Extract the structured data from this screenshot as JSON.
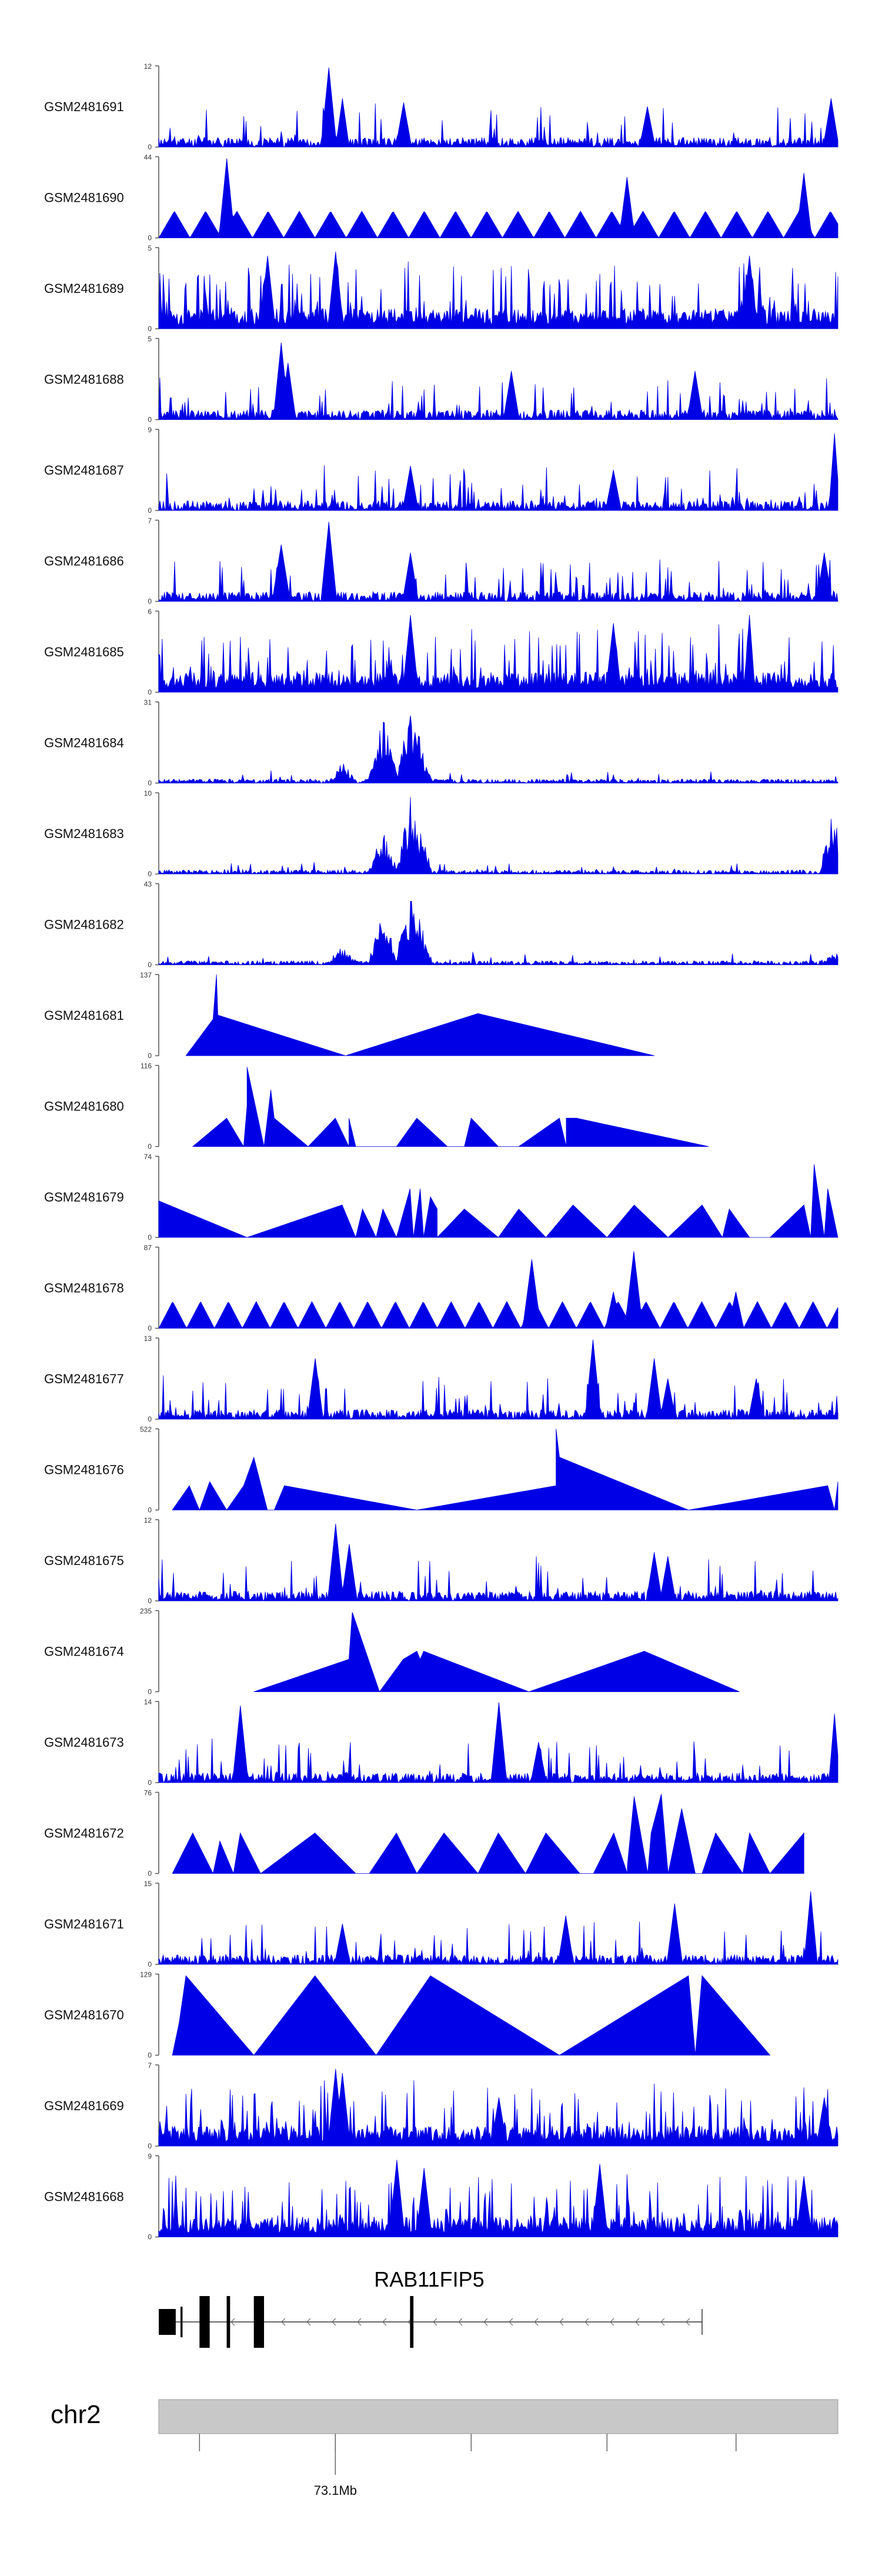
{
  "chart_data": {
    "type": "area",
    "title": "",
    "x_axis": {
      "tick_labels": [
        {
          "position_mb": 73.1,
          "label": "73.1Mb"
        }
      ]
    },
    "series": [
      {
        "name": "GSM2481691",
        "ymin": 0,
        "ymax": 12,
        "style": "spiky",
        "seed": 11,
        "peaks": [
          [
            0.25,
            0.98,
            0.01
          ],
          [
            0.27,
            0.6,
            0.008
          ],
          [
            0.36,
            0.55,
            0.01
          ],
          [
            0.72,
            0.5,
            0.01
          ],
          [
            0.99,
            0.6,
            0.01
          ]
        ]
      },
      {
        "name": "GSM2481690",
        "ymin": 0,
        "ymax": 44,
        "style": "triangles",
        "seed": 12,
        "peaks": [
          [
            0.1,
            0.98,
            0.01
          ],
          [
            0.69,
            0.75,
            0.01
          ],
          [
            0.95,
            0.8,
            0.01
          ]
        ]
      },
      {
        "name": "GSM2481689",
        "ymin": 0,
        "ymax": 5,
        "style": "dense",
        "seed": 13,
        "peaks": [
          [
            0.16,
            0.9,
            0.01
          ],
          [
            0.26,
            0.95,
            0.01
          ],
          [
            0.87,
            0.9,
            0.01
          ]
        ]
      },
      {
        "name": "GSM2481688",
        "ymin": 0,
        "ymax": 5,
        "style": "spiky",
        "seed": 14,
        "peaks": [
          [
            0.18,
            0.95,
            0.01
          ],
          [
            0.19,
            0.7,
            0.01
          ],
          [
            0.52,
            0.6,
            0.01
          ],
          [
            0.79,
            0.6,
            0.01
          ]
        ]
      },
      {
        "name": "GSM2481687",
        "ymin": 0,
        "ymax": 9,
        "style": "spiky",
        "seed": 15,
        "peaks": [
          [
            0.37,
            0.55,
            0.01
          ],
          [
            0.67,
            0.5,
            0.01
          ],
          [
            0.995,
            0.95,
            0.006
          ]
        ]
      },
      {
        "name": "GSM2481686",
        "ymin": 0,
        "ymax": 7,
        "style": "spiky",
        "seed": 16,
        "peaks": [
          [
            0.18,
            0.7,
            0.012
          ],
          [
            0.25,
            0.98,
            0.01
          ],
          [
            0.37,
            0.6,
            0.01
          ],
          [
            0.98,
            0.6,
            0.01
          ]
        ]
      },
      {
        "name": "GSM2481685",
        "ymin": 0,
        "ymax": 6,
        "style": "dense",
        "seed": 17,
        "peaks": [
          [
            0.37,
            0.95,
            0.01
          ],
          [
            0.67,
            0.85,
            0.01
          ],
          [
            0.87,
            0.95,
            0.006
          ]
        ]
      },
      {
        "name": "GSM2481684",
        "ymin": 0,
        "ymax": 31,
        "style": "cluster",
        "seed": 18,
        "peaks": [
          [
            0.27,
            0.28,
            0.02
          ],
          [
            0.33,
            0.85,
            0.012
          ],
          [
            0.37,
            0.95,
            0.012
          ],
          [
            0.38,
            0.7,
            0.01
          ]
        ]
      },
      {
        "name": "GSM2481683",
        "ymin": 0,
        "ymax": 10,
        "style": "cluster",
        "seed": 19,
        "peaks": [
          [
            0.33,
            0.55,
            0.01
          ],
          [
            0.37,
            0.95,
            0.01
          ],
          [
            0.38,
            0.7,
            0.01
          ],
          [
            0.995,
            0.9,
            0.006
          ]
        ]
      },
      {
        "name": "GSM2481682",
        "ymin": 0,
        "ymax": 43,
        "style": "cluster",
        "seed": 20,
        "peaks": [
          [
            0.27,
            0.25,
            0.02
          ],
          [
            0.33,
            0.75,
            0.012
          ],
          [
            0.37,
            0.98,
            0.012
          ],
          [
            0.38,
            0.7,
            0.01
          ],
          [
            0.995,
            0.15,
            0.005
          ]
        ]
      },
      {
        "name": "GSM2481681",
        "ymin": 0,
        "ymax": 137,
        "style": "triangles_explicit",
        "seed": 21,
        "points": [
          [
            0.04,
            0
          ],
          [
            0.08,
            0.45
          ],
          [
            0.085,
            1.0
          ],
          [
            0.087,
            0.5
          ],
          [
            0.275,
            0
          ],
          [
            0.47,
            0.52
          ],
          [
            0.73,
            0
          ]
        ]
      },
      {
        "name": "GSM2481680",
        "ymin": 0,
        "ymax": 116,
        "style": "triangles_explicit",
        "seed": 22,
        "points": [
          [
            0.05,
            0
          ],
          [
            0.1,
            0.35
          ],
          [
            0.125,
            0
          ],
          [
            0.13,
            0.4
          ],
          [
            0.14,
            0.45
          ],
          [
            0.125,
            0
          ],
          [
            0.125,
            0
          ],
          [
            0.13,
            0.5
          ],
          [
            0.13,
            0.98
          ],
          [
            0.155,
            0
          ],
          [
            0.165,
            0.7
          ],
          [
            0.17,
            0.35
          ],
          [
            0.22,
            0
          ],
          [
            0.26,
            0.35
          ],
          [
            0.28,
            0
          ],
          [
            0.28,
            0.35
          ],
          [
            0.29,
            0
          ],
          [
            0.35,
            0
          ],
          [
            0.38,
            0.35
          ],
          [
            0.425,
            0
          ],
          [
            0.45,
            0
          ],
          [
            0.46,
            0.35
          ],
          [
            0.5,
            0
          ],
          [
            0.53,
            0
          ],
          [
            0.59,
            0.35
          ],
          [
            0.6,
            0
          ],
          [
            0.6,
            0.35
          ],
          [
            0.615,
            0.35
          ],
          [
            0.81,
            0
          ]
        ]
      },
      {
        "name": "GSM2481679",
        "ymin": 0,
        "ymax": 74,
        "style": "triangles_explicit",
        "seed": 23,
        "points": [
          [
            0.0,
            0.45
          ],
          [
            0.13,
            0
          ],
          [
            0.27,
            0.4
          ],
          [
            0.29,
            0
          ],
          [
            0.3,
            0.35
          ],
          [
            0.32,
            0
          ],
          [
            0.33,
            0.35
          ],
          [
            0.35,
            0
          ],
          [
            0.36,
            0.3
          ],
          [
            0.37,
            0.6
          ],
          [
            0.375,
            0
          ],
          [
            0.385,
            0.6
          ],
          [
            0.39,
            0
          ],
          [
            0.4,
            0.5
          ],
          [
            0.41,
            0.35
          ],
          [
            0.41,
            0
          ],
          [
            0.45,
            0.35
          ],
          [
            0.5,
            0
          ],
          [
            0.53,
            0.35
          ],
          [
            0.57,
            0
          ],
          [
            0.61,
            0.4
          ],
          [
            0.66,
            0
          ],
          [
            0.7,
            0.4
          ],
          [
            0.75,
            0
          ],
          [
            0.8,
            0.4
          ],
          [
            0.83,
            0
          ],
          [
            0.84,
            0.35
          ],
          [
            0.87,
            0
          ],
          [
            0.9,
            0
          ],
          [
            0.95,
            0.4
          ],
          [
            0.96,
            0
          ],
          [
            0.965,
            0.9
          ],
          [
            0.98,
            0
          ],
          [
            0.985,
            0.6
          ],
          [
            1.0,
            0
          ]
        ]
      },
      {
        "name": "GSM2481678",
        "ymin": 0,
        "ymax": 87,
        "style": "triangles_repeat",
        "seed": 24,
        "peaks": [
          [
            0.55,
            0.85,
            0.012
          ],
          [
            0.7,
            0.95,
            0.012
          ],
          [
            0.67,
            0.45,
            0.01
          ],
          [
            0.85,
            0.45,
            0.01
          ]
        ]
      },
      {
        "name": "GSM2481677",
        "ymin": 0,
        "ymax": 13,
        "style": "spiky",
        "seed": 25,
        "peaks": [
          [
            0.23,
            0.75,
            0.01
          ],
          [
            0.64,
            0.98,
            0.01
          ],
          [
            0.73,
            0.75,
            0.01
          ],
          [
            0.75,
            0.5,
            0.01
          ],
          [
            0.88,
            0.5,
            0.01
          ]
        ]
      },
      {
        "name": "GSM2481676",
        "ymin": 0,
        "ymax": 522,
        "style": "triangles_explicit",
        "seed": 26,
        "points": [
          [
            0.02,
            0
          ],
          [
            0.045,
            0.3
          ],
          [
            0.06,
            0
          ],
          [
            0.075,
            0.35
          ],
          [
            0.1,
            0
          ],
          [
            0.125,
            0.3
          ],
          [
            0.14,
            0.65
          ],
          [
            0.16,
            0
          ],
          [
            0.17,
            0.0
          ],
          [
            0.185,
            0.3
          ],
          [
            0.38,
            0
          ],
          [
            0.585,
            0.3
          ],
          [
            0.585,
            1.0
          ],
          [
            0.59,
            0.65
          ],
          [
            0.78,
            0
          ],
          [
            0.985,
            0.3
          ],
          [
            0.995,
            0
          ],
          [
            1.0,
            0.35
          ]
        ]
      },
      {
        "name": "GSM2481675",
        "ymin": 0,
        "ymax": 12,
        "style": "spiky",
        "seed": 27,
        "peaks": [
          [
            0.26,
            0.95,
            0.01
          ],
          [
            0.28,
            0.7,
            0.01
          ],
          [
            0.73,
            0.6,
            0.01
          ],
          [
            0.75,
            0.55,
            0.01
          ]
        ]
      },
      {
        "name": "GSM2481674",
        "ymin": 0,
        "ymax": 235,
        "style": "triangles_explicit",
        "seed": 28,
        "points": [
          [
            0.14,
            0
          ],
          [
            0.28,
            0.4
          ],
          [
            0.285,
            0.98
          ],
          [
            0.325,
            0
          ],
          [
            0.36,
            0.4
          ],
          [
            0.38,
            0.5
          ],
          [
            0.385,
            0.4
          ],
          [
            0.39,
            0.5
          ],
          [
            0.545,
            0
          ],
          [
            0.715,
            0.5
          ],
          [
            0.855,
            0
          ]
        ]
      },
      {
        "name": "GSM2481673",
        "ymin": 0,
        "ymax": 14,
        "style": "spiky",
        "seed": 29,
        "peaks": [
          [
            0.12,
            0.95,
            0.01
          ],
          [
            0.5,
            0.99,
            0.01
          ],
          [
            0.56,
            0.5,
            0.01
          ],
          [
            0.995,
            0.85,
            0.006
          ]
        ]
      },
      {
        "name": "GSM2481672",
        "ymin": 0,
        "ymax": 76,
        "style": "triangles_explicit",
        "seed": 29,
        "points": [
          [
            0.02,
            0
          ],
          [
            0.05,
            0.5
          ],
          [
            0.08,
            0
          ],
          [
            0.08,
            0
          ],
          [
            0.09,
            0.4
          ],
          [
            0.11,
            0
          ],
          [
            0.12,
            0.5
          ],
          [
            0.15,
            0
          ],
          [
            0.15,
            0
          ],
          [
            0.23,
            0.5
          ],
          [
            0.29,
            0
          ],
          [
            0.31,
            0.0
          ],
          [
            0.35,
            0.5
          ],
          [
            0.38,
            0
          ],
          [
            0.42,
            0.5
          ],
          [
            0.47,
            0
          ],
          [
            0.5,
            0.5
          ],
          [
            0.54,
            0
          ],
          [
            0.57,
            0.5
          ],
          [
            0.62,
            0
          ],
          [
            0.64,
            0.0
          ],
          [
            0.67,
            0.5
          ],
          [
            0.69,
            0
          ],
          [
            0.69,
            0.1
          ],
          [
            0.7,
            0.95
          ],
          [
            0.72,
            0
          ],
          [
            0.725,
            0.5
          ],
          [
            0.74,
            0.98
          ],
          [
            0.75,
            0
          ],
          [
            0.77,
            0.8
          ],
          [
            0.79,
            0
          ],
          [
            0.8,
            0.0
          ],
          [
            0.82,
            0.5
          ],
          [
            0.86,
            0
          ],
          [
            0.87,
            0.5
          ],
          [
            0.9,
            0
          ],
          [
            0.95,
            0.5
          ]
        ]
      },
      {
        "name": "GSM2481671",
        "ymin": 0,
        "ymax": 15,
        "style": "spiky",
        "seed": 31,
        "peaks": [
          [
            0.27,
            0.5,
            0.01
          ],
          [
            0.6,
            0.6,
            0.01
          ],
          [
            0.76,
            0.75,
            0.01
          ],
          [
            0.96,
            0.9,
            0.008
          ]
        ]
      },
      {
        "name": "GSM2481670",
        "ymin": 0,
        "ymax": 129,
        "style": "triangles_explicit",
        "seed": 32,
        "points": [
          [
            0.02,
            0
          ],
          [
            0.03,
            0.4
          ],
          [
            0.04,
            0.98
          ],
          [
            0.14,
            0
          ],
          [
            0.23,
            0.98
          ],
          [
            0.32,
            0
          ],
          [
            0.4,
            0.98
          ],
          [
            0.59,
            0
          ],
          [
            0.78,
            0.98
          ],
          [
            0.79,
            0
          ],
          [
            0.8,
            0.98
          ],
          [
            0.9,
            0
          ]
        ]
      },
      {
        "name": "GSM2481669",
        "ymin": 0,
        "ymax": 7,
        "style": "dense",
        "seed": 33,
        "peaks": [
          [
            0.26,
            0.95,
            0.01
          ],
          [
            0.27,
            0.9,
            0.01
          ],
          [
            0.5,
            0.6,
            0.01
          ],
          [
            0.98,
            0.6,
            0.01
          ]
        ]
      },
      {
        "name": "GSM2481668",
        "ymin": 0,
        "ymax": 9,
        "style": "dense",
        "seed": 34,
        "peaks": [
          [
            0.35,
            0.95,
            0.01
          ],
          [
            0.39,
            0.85,
            0.01
          ],
          [
            0.65,
            0.9,
            0.01
          ],
          [
            0.95,
            0.75,
            0.01
          ]
        ]
      }
    ],
    "gene": {
      "name": "RAB11FIP5",
      "strand": "-",
      "exons": [
        [
          0.0,
          0.025
        ],
        [
          0.032,
          0.035
        ],
        [
          0.06,
          0.075
        ],
        [
          0.1,
          0.105
        ],
        [
          0.14,
          0.155
        ],
        [
          0.37,
          0.375
        ]
      ],
      "span": [
        0.0,
        0.8
      ]
    },
    "chromosome": {
      "name": "chr2",
      "tick_positions": [
        0.06,
        0.26,
        0.46,
        0.66,
        0.85
      ]
    }
  },
  "colors": {
    "signal": "#0000e6",
    "axis": "#555555",
    "chrom_fill": "#c8c8c8"
  }
}
